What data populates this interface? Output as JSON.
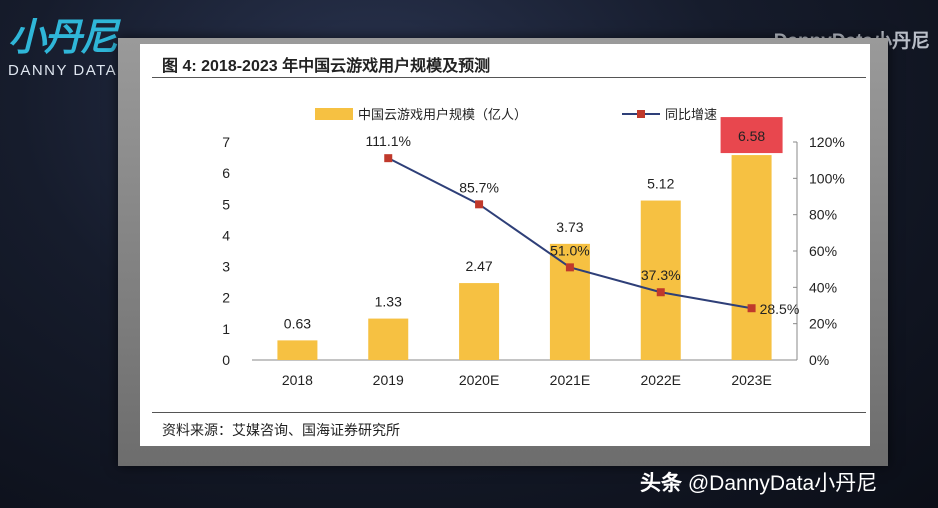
{
  "logo": {
    "mark": "小丹尼",
    "text": "DANNY DATA"
  },
  "watermark_top": "DannyData小丹尼",
  "watermark_bottom": {
    "prefix": "头条",
    "handle": "@DannyData小丹尼"
  },
  "figure": {
    "title": "图 4:  2018-2023 年中国云游戏用户规模及预测",
    "source": "资料来源：艾媒咨询、国海证券研究所"
  },
  "chart_data": {
    "type": "bar+line",
    "categories": [
      "2018",
      "2019",
      "2020E",
      "2021E",
      "2022E",
      "2023E"
    ],
    "series": [
      {
        "name": "中国云游戏用户规模（亿人）",
        "type": "bar",
        "axis": "left",
        "color": "#F6C142",
        "values": [
          0.63,
          1.33,
          2.47,
          3.73,
          5.12,
          6.58
        ],
        "labels": [
          "0.63",
          "1.33",
          "2.47",
          "3.73",
          "5.12",
          "6.58"
        ]
      },
      {
        "name": "同比增速",
        "type": "line",
        "axis": "right",
        "color": "#2E3F78",
        "marker_color": "#C0392B",
        "values": [
          null,
          111.1,
          85.7,
          51.0,
          37.3,
          28.5
        ],
        "labels": [
          "",
          "111.1%",
          "85.7%",
          "51.0%",
          "37.3%",
          "28.5%"
        ]
      }
    ],
    "left_axis": {
      "ylim": [
        0,
        7
      ],
      "ticks": [
        "0",
        "1",
        "2",
        "3",
        "4",
        "5",
        "6",
        "7"
      ]
    },
    "right_axis": {
      "ylim": [
        0,
        120
      ],
      "ticks": [
        "0%",
        "20%",
        "40%",
        "60%",
        "80%",
        "100%",
        "120%"
      ]
    },
    "highlight": {
      "category": "2023E",
      "color": "#E8474E"
    },
    "legend": "top",
    "grid": false
  }
}
